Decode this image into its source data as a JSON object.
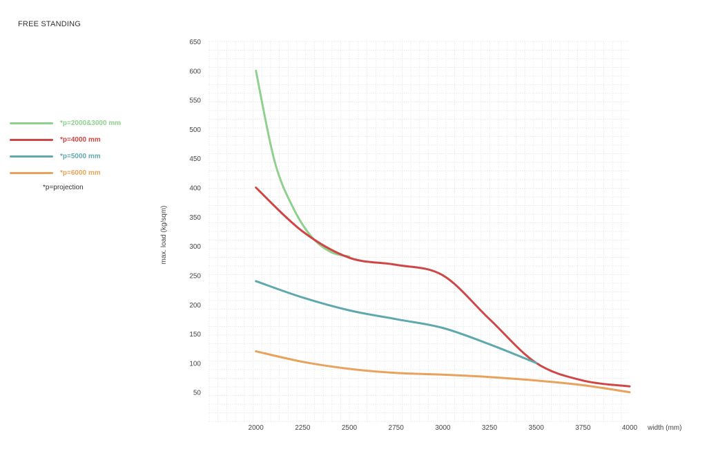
{
  "header": {
    "title": "FREE STANDING"
  },
  "legend": {
    "items": [
      {
        "label": "*p=2000&3000 mm",
        "color": "#8fd08f"
      },
      {
        "label": "*p=4000 mm",
        "color": "#cf4646"
      },
      {
        "label": "*p=5000 mm",
        "color": "#5fa9ae"
      },
      {
        "label": "*p=6000 mm",
        "color": "#e8a25c"
      }
    ],
    "note": "*p=projection"
  },
  "chart_data": {
    "type": "line",
    "title": "FREE STANDING",
    "xlabel": "width (mm)",
    "ylabel": "max. load (kg/sqm)",
    "xlim": [
      1750,
      4000
    ],
    "ylim": [
      0,
      650
    ],
    "x_ticks": [
      2000,
      2250,
      2500,
      2750,
      3000,
      3250,
      3500,
      3750,
      4000
    ],
    "y_ticks": [
      50,
      100,
      150,
      200,
      250,
      300,
      350,
      400,
      450,
      500,
      550,
      600,
      650
    ],
    "grid": true,
    "legend_position": "left",
    "series": [
      {
        "name": "*p=2000&3000 mm",
        "color": "#8fd08f",
        "x": [
          2000,
          2100,
          2200,
          2300,
          2400,
          2500
        ],
        "y": [
          600,
          445,
          365,
          315,
          290,
          282
        ]
      },
      {
        "name": "*p=4000 mm",
        "color": "#cf4646",
        "x": [
          2000,
          2250,
          2500,
          2750,
          3000,
          3250,
          3500,
          3750,
          4000
        ],
        "y": [
          400,
          325,
          280,
          268,
          250,
          175,
          100,
          70,
          60
        ]
      },
      {
        "name": "*p=5000 mm",
        "color": "#5fa9ae",
        "x": [
          2000,
          2250,
          2500,
          2750,
          3000,
          3250,
          3500
        ],
        "y": [
          240,
          212,
          190,
          175,
          160,
          132,
          100
        ]
      },
      {
        "name": "*p=6000 mm",
        "color": "#e8a25c",
        "x": [
          2000,
          2250,
          2500,
          2750,
          3000,
          3250,
          3500,
          3750,
          4000
        ],
        "y": [
          120,
          102,
          90,
          83,
          80,
          76,
          70,
          62,
          50
        ]
      }
    ]
  }
}
